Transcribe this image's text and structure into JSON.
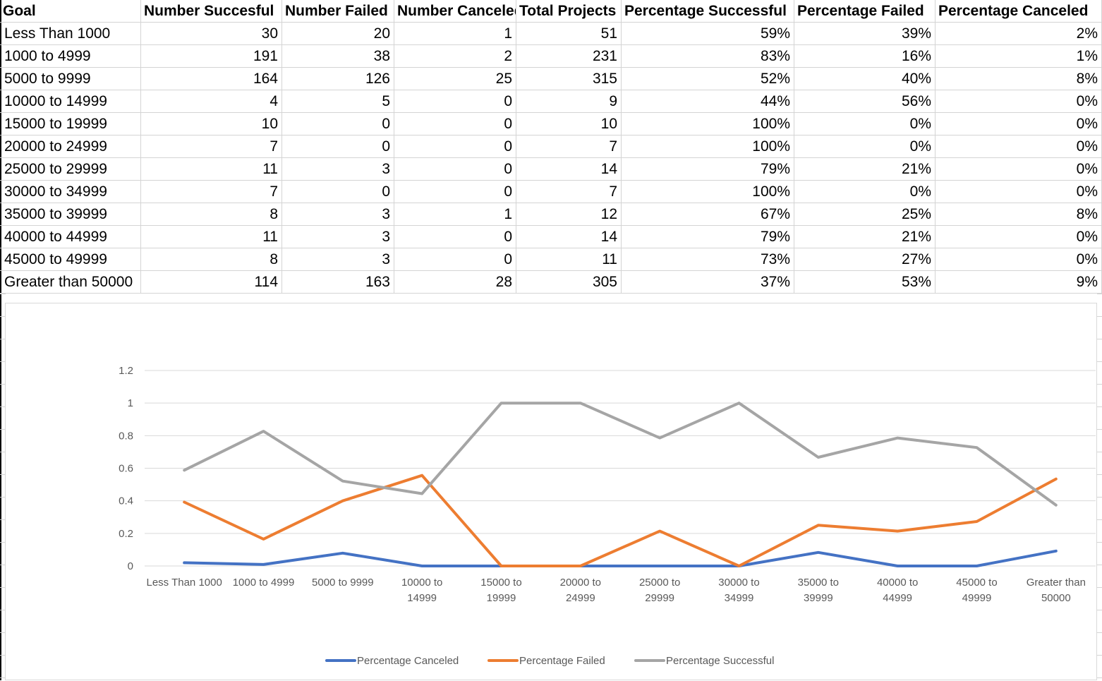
{
  "table": {
    "headers": [
      "Goal",
      "Number Succesful",
      "Number Failed",
      "Number Canceled",
      "Total Projects",
      "Percentage Successful",
      "Percentage Failed",
      "Percentage Canceled"
    ],
    "rows": [
      [
        "Less Than 1000",
        "30",
        "20",
        "1",
        "51",
        "59%",
        "39%",
        "2%"
      ],
      [
        "1000 to 4999",
        "191",
        "38",
        "2",
        "231",
        "83%",
        "16%",
        "1%"
      ],
      [
        "5000 to 9999",
        "164",
        "126",
        "25",
        "315",
        "52%",
        "40%",
        "8%"
      ],
      [
        "10000 to 14999",
        "4",
        "5",
        "0",
        "9",
        "44%",
        "56%",
        "0%"
      ],
      [
        "15000 to 19999",
        "10",
        "0",
        "0",
        "10",
        "100%",
        "0%",
        "0%"
      ],
      [
        "20000 to 24999",
        "7",
        "0",
        "0",
        "7",
        "100%",
        "0%",
        "0%"
      ],
      [
        "25000 to 29999",
        "11",
        "3",
        "0",
        "14",
        "79%",
        "21%",
        "0%"
      ],
      [
        "30000 to 34999",
        "7",
        "0",
        "0",
        "7",
        "100%",
        "0%",
        "0%"
      ],
      [
        "35000 to 39999",
        "8",
        "3",
        "1",
        "12",
        "67%",
        "25%",
        "8%"
      ],
      [
        "40000 to 44999",
        "11",
        "3",
        "0",
        "14",
        "79%",
        "21%",
        "0%"
      ],
      [
        "45000 to 49999",
        "8",
        "3",
        "0",
        "11",
        "73%",
        "27%",
        "0%"
      ],
      [
        "Greater than 50000",
        "114",
        "163",
        "28",
        "305",
        "37%",
        "53%",
        "9%"
      ]
    ]
  },
  "chart_data": {
    "type": "line",
    "categories": [
      "Less Than 1000",
      "1000 to 4999",
      "5000 to 9999",
      "10000 to 14999",
      "15000 to 19999",
      "20000 to 24999",
      "25000 to 29999",
      "30000 to 34999",
      "35000 to 39999",
      "40000 to 44999",
      "45000 to 49999",
      "Greater than 50000"
    ],
    "series": [
      {
        "name": "Percentage Canceled",
        "color": "#4472c4",
        "values": [
          0.02,
          0.009,
          0.079,
          0,
          0,
          0,
          0,
          0,
          0.083,
          0,
          0,
          0.092
        ]
      },
      {
        "name": "Percentage Failed",
        "color": "#ed7d31",
        "values": [
          0.392,
          0.165,
          0.4,
          0.556,
          0,
          0,
          0.214,
          0,
          0.25,
          0.214,
          0.273,
          0.534
        ]
      },
      {
        "name": "Percentage Successful",
        "color": "#a5a5a5",
        "values": [
          0.588,
          0.827,
          0.521,
          0.444,
          1,
          1,
          0.786,
          1,
          0.667,
          0.786,
          0.727,
          0.374
        ]
      }
    ],
    "yticks": [
      "0",
      "0.2",
      "0.4",
      "0.6",
      "0.8",
      "1",
      "1.2"
    ],
    "ylim": [
      0,
      1.2
    ],
    "grid": true,
    "legend": "bottom"
  }
}
